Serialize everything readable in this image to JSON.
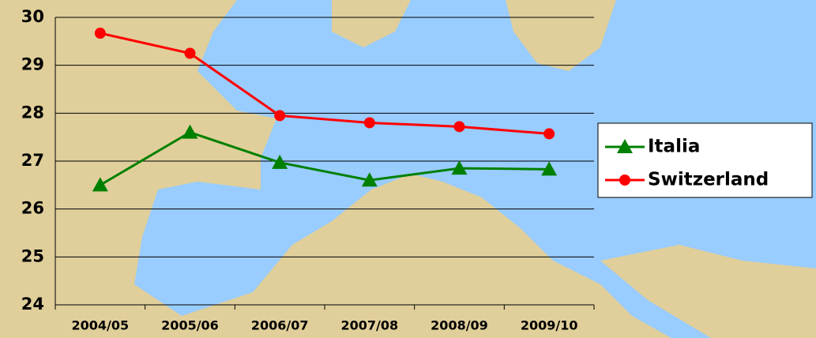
{
  "chart_data": {
    "type": "line",
    "categories": [
      "2004/05",
      "2005/06",
      "2006/07",
      "2007/08",
      "2008/09",
      "2009/10"
    ],
    "series": [
      {
        "name": "Italia",
        "color": "#008000",
        "marker": "triangle",
        "values": [
          26.5,
          27.6,
          26.97,
          26.6,
          26.85,
          26.83
        ]
      },
      {
        "name": "Switzerland",
        "color": "#ff0000",
        "marker": "circle",
        "values": [
          29.67,
          29.25,
          27.95,
          27.8,
          27.72,
          27.57
        ]
      }
    ],
    "ylim": [
      24,
      30
    ],
    "yticks": [
      24,
      25,
      26,
      27,
      28,
      29,
      30
    ],
    "grid": true,
    "legend": "right"
  }
}
